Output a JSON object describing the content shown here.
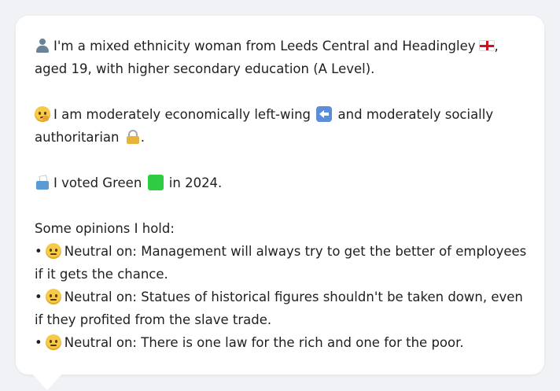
{
  "profile": {
    "intro": "I'm a mixed ethnicity woman from Leeds Central and Headingley",
    "intro_tail": ", aged 19, with higher secondary education (A Level).",
    "econ_pre": "I am moderately economically left-wing",
    "econ_mid": "and moderately socially authoritarian",
    "econ_end": ".",
    "vote_pre": "I voted Green",
    "vote_post": "in 2024."
  },
  "opinions": {
    "heading": "Some opinions I hold:",
    "bullet": "•",
    "items": [
      {
        "stance": "Neutral on:",
        "text": "Management will always try to get the better of employees if it gets the chance."
      },
      {
        "stance": "Neutral on:",
        "text": "Statues of historical figures shouldn't be taken down, even if they profited from the slave trade."
      },
      {
        "stance": "Neutral on:",
        "text": "There is one law for the rich and one for the poor."
      }
    ]
  },
  "icons": {
    "person": "person-icon",
    "flag": "england-flag-icon",
    "thinking": "thinking-face-icon",
    "left_arrow": "left-arrow-icon",
    "lock": "lock-icon",
    "ballot": "ballot-box-icon",
    "party_color": "green-square-icon",
    "neutral": "neutral-face-icon"
  },
  "colors": {
    "background": "#f0f2f5",
    "card": "#ffffff",
    "text": "#1f1f1f",
    "party_green": "#2ecc40",
    "arrow_blue": "#5c8dd6"
  }
}
